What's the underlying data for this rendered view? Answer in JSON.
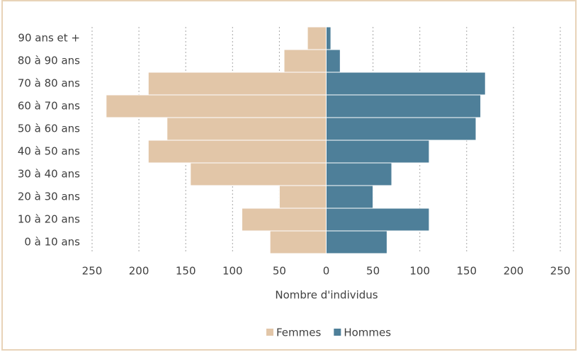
{
  "chart_data": {
    "type": "pyramid",
    "categories": [
      "0 à 10 ans",
      "10 à 20 ans",
      "20 à 30 ans",
      "30 à 40 ans",
      "40 à 50 ans",
      "50 à 60 ans",
      "60 à 70 ans",
      "70 à 80 ans",
      "80 à 90 ans",
      "90 ans et +"
    ],
    "series": [
      {
        "name": "Femmes",
        "color": "#e2c6a8",
        "values": [
          -60,
          -90,
          -50,
          -145,
          -190,
          -170,
          -235,
          -190,
          -45,
          -20
        ]
      },
      {
        "name": "Hommes",
        "color": "#4e7f99",
        "values": [
          65,
          110,
          50,
          70,
          110,
          160,
          165,
          170,
          15,
          5
        ]
      }
    ],
    "xlabel": "Nombre d'individus",
    "xlim": [
      -250,
      250
    ],
    "xticks": [
      {
        "value": -250,
        "label": "250"
      },
      {
        "value": -200,
        "label": "200"
      },
      {
        "value": -150,
        "label": "150"
      },
      {
        "value": -100,
        "label": "100"
      },
      {
        "value": -50,
        "label": "50"
      },
      0,
      50,
      100,
      150,
      200,
      250
    ],
    "grid": true,
    "legend": "bottom"
  }
}
